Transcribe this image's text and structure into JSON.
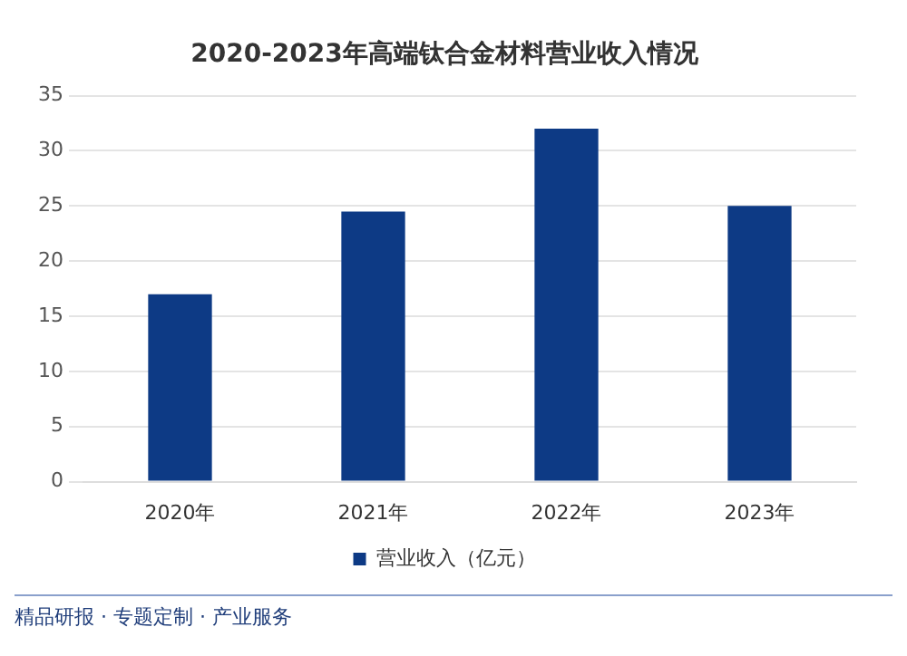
{
  "chart_data": {
    "type": "bar",
    "title": "2020-2023年高端钛合金材料营业收入情况",
    "categories": [
      "2020年",
      "2021年",
      "2022年",
      "2023年"
    ],
    "series": [
      {
        "name": "营业收入（亿元）",
        "color": "#0d3a85",
        "values": [
          17,
          24.5,
          32,
          25
        ]
      }
    ],
    "ylim": [
      0,
      35
    ],
    "yticks": [
      0,
      5,
      10,
      15,
      20,
      25,
      30,
      35
    ],
    "grid": "y",
    "legend": "bottom",
    "annotations": [
      "精品研报 · 专题定制 · 产业服务"
    ]
  }
}
